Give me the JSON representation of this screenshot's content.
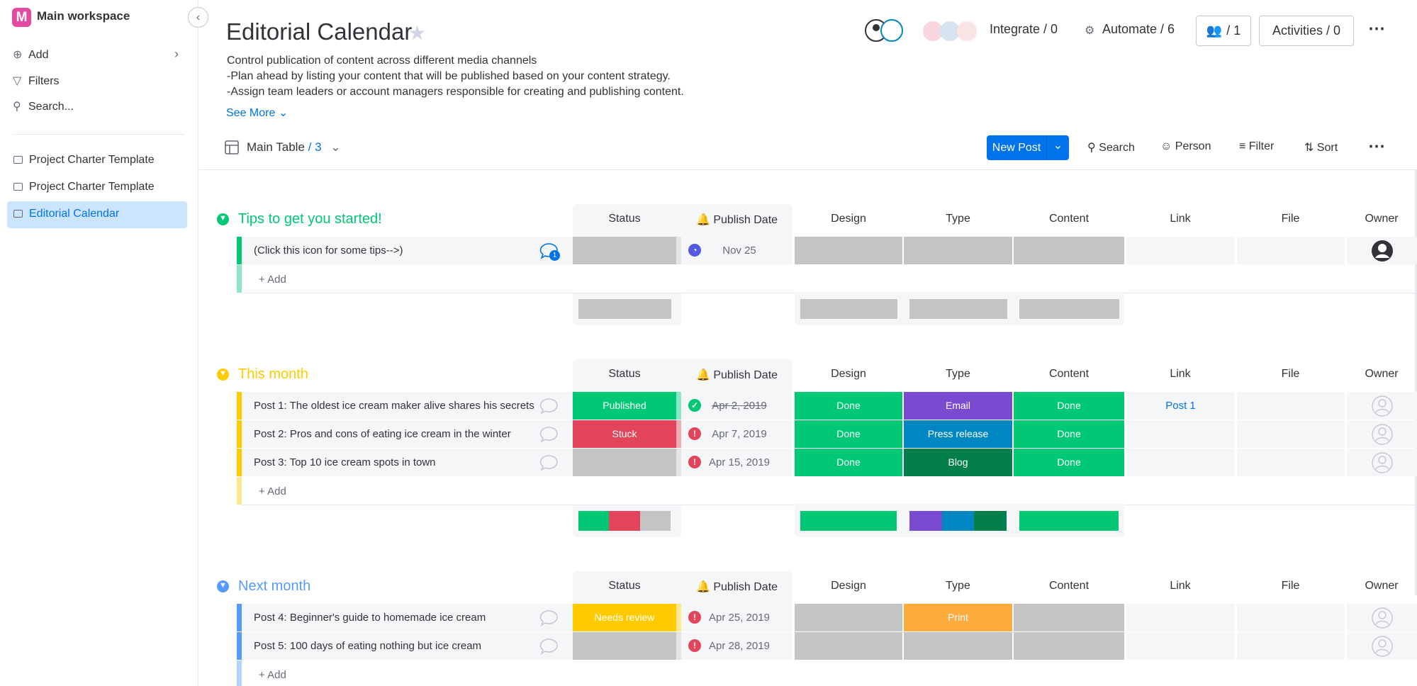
{
  "sidebar": {
    "logo": "M",
    "workspace": "Main workspace",
    "actions": [
      "Add",
      "Filters",
      "Search..."
    ],
    "boards": [
      "Project Charter Template",
      "Project Charter Template",
      "Editorial Calendar"
    ],
    "active_board": 2
  },
  "header": {
    "title": "Editorial Calendar",
    "description": [
      "Control publication of content across different media channels",
      "-Plan ahead by listing your content that will be published based on your content strategy.",
      "-Assign team leaders or account managers responsible for creating and publishing content."
    ],
    "see_more": "See More",
    "integrate": "Integrate / 0",
    "automate": "Automate / 6",
    "members": "/ 1",
    "activities": "Activities / 0"
  },
  "toolbar": {
    "view": "Main Table",
    "view_count": "/ 3",
    "new_item": "New Post",
    "search": "Search",
    "person": "Person",
    "filter": "Filter",
    "sort": "Sort"
  },
  "table": {
    "columns": [
      "Status",
      "Publish Date",
      "Design",
      "Type",
      "Content",
      "Link",
      "File",
      "Owner"
    ],
    "add_item": "+ Add",
    "groups": [
      {
        "title": "Tips to get you started!",
        "color": "#00c875",
        "rows": [
          {
            "name": "(Click this icon for some tips-->)",
            "updates": 1,
            "status": null,
            "date": "Nov 25",
            "date_state": "pending",
            "design": null,
            "type": null,
            "content": null,
            "link": null,
            "owner": "assigned"
          }
        ]
      },
      {
        "title": "This month",
        "color": "#ffcb00",
        "rows": [
          {
            "name": "Post 1: The oldest ice cream maker alive shares his secrets",
            "status": {
              "label": "Published",
              "color": "#00c875"
            },
            "date": "Apr 2, 2019",
            "date_state": "done",
            "design": {
              "label": "Done",
              "color": "#00c875"
            },
            "type": {
              "label": "Email",
              "color": "#784bd1"
            },
            "content": {
              "label": "Done",
              "color": "#00c875"
            },
            "link": "Post 1",
            "owner": null
          },
          {
            "name": "Post 2: Pros and cons of eating ice cream in the winter",
            "status": {
              "label": "Stuck",
              "color": "#e2445c"
            },
            "date": "Apr 7, 2019",
            "date_state": "overdue",
            "design": {
              "label": "Done",
              "color": "#00c875"
            },
            "type": {
              "label": "Press release",
              "color": "#0086c0"
            },
            "content": {
              "label": "Done",
              "color": "#00c875"
            },
            "link": null,
            "owner": null
          },
          {
            "name": "Post 3: Top 10 ice cream spots in town",
            "status": null,
            "date": "Apr 15, 2019",
            "date_state": "overdue",
            "design": {
              "label": "Done",
              "color": "#00c875"
            },
            "type": {
              "label": "Blog",
              "color": "#037f4c"
            },
            "content": {
              "label": "Done",
              "color": "#00c875"
            },
            "link": null,
            "owner": null
          }
        ]
      },
      {
        "title": "Next month",
        "color": "#579bfc",
        "rows": [
          {
            "name": "Post 4: Beginner's guide to homemade ice cream",
            "status": {
              "label": "Needs review",
              "color": "#ffcb00"
            },
            "date": "Apr 25, 2019",
            "date_state": "overdue",
            "design": null,
            "type": {
              "label": "Print",
              "color": "#fdab3d"
            },
            "content": null,
            "link": null,
            "owner": null
          },
          {
            "name": "Post 5: 100 days of eating nothing but ice cream",
            "status": null,
            "date": "Apr 28, 2019",
            "date_state": "overdue",
            "design": null,
            "type": null,
            "content": null,
            "link": null,
            "owner": null
          }
        ]
      }
    ]
  }
}
